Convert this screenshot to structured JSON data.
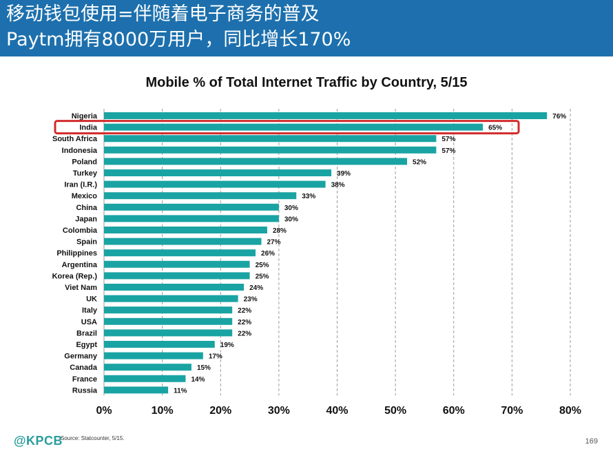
{
  "header": {
    "line1": "移动钱包使用=伴随着电子商务的普及",
    "line2": "Paytm拥有8000万用户，同比增长170%"
  },
  "colors": {
    "header_bg": "#1d70ad",
    "bar": "#1aa3a3",
    "highlight": "#d22b2b",
    "logo": "#2a9c9c"
  },
  "chart_data": {
    "type": "bar",
    "orientation": "horizontal",
    "title": "Mobile % of Total Internet Traffic by Country, 5/15",
    "xlabel": "",
    "ylabel": "",
    "xlim": [
      0,
      80
    ],
    "xticks": [
      "0%",
      "10%",
      "20%",
      "30%",
      "40%",
      "50%",
      "60%",
      "70%",
      "80%"
    ],
    "grid": "vertical dashed",
    "value_suffix": "%",
    "highlighted_category": "India",
    "categories": [
      "Nigeria",
      "India",
      "South Africa",
      "Indonesia",
      "Poland",
      "Turkey",
      "Iran (I.R.)",
      "Mexico",
      "China",
      "Japan",
      "Colombia",
      "Spain",
      "Philippines",
      "Argentina",
      "Korea (Rep.)",
      "Viet Nam",
      "UK",
      "Italy",
      "USA",
      "Brazil",
      "Egypt",
      "Germany",
      "Canada",
      "France",
      "Russia"
    ],
    "values": [
      76,
      65,
      57,
      57,
      52,
      39,
      38,
      33,
      30,
      30,
      28,
      27,
      26,
      25,
      25,
      24,
      23,
      22,
      22,
      22,
      19,
      17,
      15,
      14,
      11
    ]
  },
  "footer": {
    "logo": "@KPCB",
    "source": "Source: Statcounter, 5/15.",
    "page_number": "169"
  }
}
